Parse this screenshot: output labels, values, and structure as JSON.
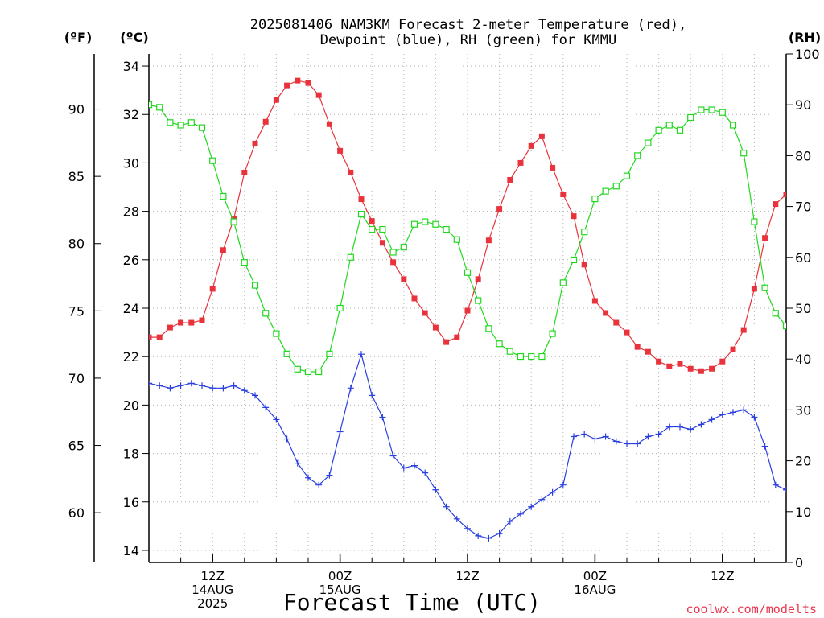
{
  "title_line1": "2025081406 NAM3KM Forecast 2-meter Temperature (red),",
  "title_line2": "Dewpoint (blue), RH (green) for KMMU",
  "units": {
    "f": "(ºF)",
    "c": "(ºC)",
    "rh": "(RH)"
  },
  "x_title": "Forecast Time (UTC)",
  "credit": "coolwx.com/modelts",
  "x_ticks": [
    {
      "hour": 6,
      "lines": [
        "12Z",
        "14AUG",
        "2025"
      ]
    },
    {
      "hour": 18,
      "lines": [
        "00Z",
        "15AUG"
      ]
    },
    {
      "hour": 30,
      "lines": [
        "12Z"
      ]
    },
    {
      "hour": 42,
      "lines": [
        "00Z",
        "16AUG"
      ]
    },
    {
      "hour": 54,
      "lines": [
        "12Z"
      ]
    }
  ],
  "chart_data": {
    "type": "line",
    "title": "2025081406 NAM3KM Forecast 2-meter Temperature (red), Dewpoint (blue), RH (green) for KMMU",
    "xlabel": "Forecast Time (UTC)",
    "x_unit": "forecast hour from 2025-08-14 06Z",
    "xlim": [
      0,
      60
    ],
    "ylim_c": [
      13.5,
      34.5
    ],
    "ylim_rh": [
      0,
      100
    ],
    "ylim_f": [
      56.3,
      94.1
    ],
    "y_ticks_c": [
      14,
      16,
      18,
      20,
      22,
      24,
      26,
      28,
      30,
      32,
      34
    ],
    "y_ticks_f": [
      60,
      65,
      70,
      75,
      80,
      85,
      90
    ],
    "y_ticks_rh": [
      0,
      10,
      20,
      30,
      40,
      50,
      60,
      70,
      80,
      90,
      100
    ],
    "grid": true,
    "x": [
      0,
      1,
      2,
      3,
      4,
      5,
      6,
      7,
      8,
      9,
      10,
      11,
      12,
      13,
      14,
      15,
      16,
      17,
      18,
      19,
      20,
      21,
      22,
      23,
      24,
      25,
      26,
      27,
      28,
      29,
      30,
      31,
      32,
      33,
      34,
      35,
      36,
      37,
      38,
      39,
      40,
      41,
      42,
      43,
      44,
      45,
      46,
      47,
      48,
      49,
      50,
      51,
      52,
      53,
      54,
      55,
      56,
      57,
      58,
      59,
      60
    ],
    "series": [
      {
        "name": "Temperature",
        "axis": "celsius",
        "color": "#e8333c",
        "marker": "filled-square",
        "values": [
          22.8,
          22.8,
          23.2,
          23.4,
          23.4,
          23.5,
          24.8,
          26.4,
          27.7,
          29.6,
          30.8,
          31.7,
          32.6,
          33.2,
          33.4,
          33.3,
          32.8,
          31.6,
          30.5,
          29.6,
          28.5,
          27.6,
          26.7,
          25.9,
          25.2,
          24.4,
          23.8,
          23.2,
          22.6,
          22.8,
          23.9,
          25.2,
          26.8,
          28.1,
          29.3,
          30.0,
          30.7,
          31.1,
          29.8,
          28.7,
          27.8,
          25.8,
          24.3,
          23.8,
          23.4,
          23.0,
          22.4,
          22.2,
          21.8,
          21.6,
          21.7,
          21.5,
          21.4,
          21.5,
          21.8,
          22.3,
          23.1,
          24.8,
          26.9,
          28.3,
          28.7
        ]
      },
      {
        "name": "Dewpoint",
        "axis": "celsius",
        "color": "#2a3fe0",
        "marker": "plus",
        "values": [
          20.9,
          20.8,
          20.7,
          20.8,
          20.9,
          20.8,
          20.7,
          20.7,
          20.8,
          20.6,
          20.4,
          19.9,
          19.4,
          18.6,
          17.6,
          17.0,
          16.7,
          17.1,
          18.9,
          20.7,
          22.1,
          20.4,
          19.5,
          17.9,
          17.4,
          17.5,
          17.2,
          16.5,
          15.8,
          15.3,
          14.9,
          14.6,
          14.5,
          14.7,
          15.2,
          15.5,
          15.8,
          16.1,
          16.4,
          16.7,
          18.7,
          18.8,
          18.6,
          18.7,
          18.5,
          18.4,
          18.4,
          18.7,
          18.8,
          19.1,
          19.1,
          19.0,
          19.2,
          19.4,
          19.6,
          19.7,
          19.8,
          19.5,
          18.3,
          16.7,
          16.5
        ]
      },
      {
        "name": "RH",
        "axis": "rh",
        "color": "#22d81f",
        "marker": "open-square",
        "values": [
          90,
          89.5,
          86.5,
          86,
          86.5,
          85.5,
          79,
          72,
          67,
          59,
          54.5,
          49,
          45,
          41,
          38,
          37.5,
          37.5,
          41,
          50,
          60,
          68.5,
          65.5,
          65.5,
          61,
          62,
          66.5,
          67,
          66.5,
          65.5,
          63.5,
          57,
          51.5,
          46,
          43,
          41.5,
          40.5,
          40.5,
          40.5,
          45,
          55,
          59.5,
          65,
          71.5,
          73,
          74,
          76,
          80,
          82.5,
          85,
          86,
          85,
          87.5,
          89,
          89,
          88.5,
          86,
          80.5,
          67,
          54,
          49,
          46.5
        ]
      }
    ]
  }
}
